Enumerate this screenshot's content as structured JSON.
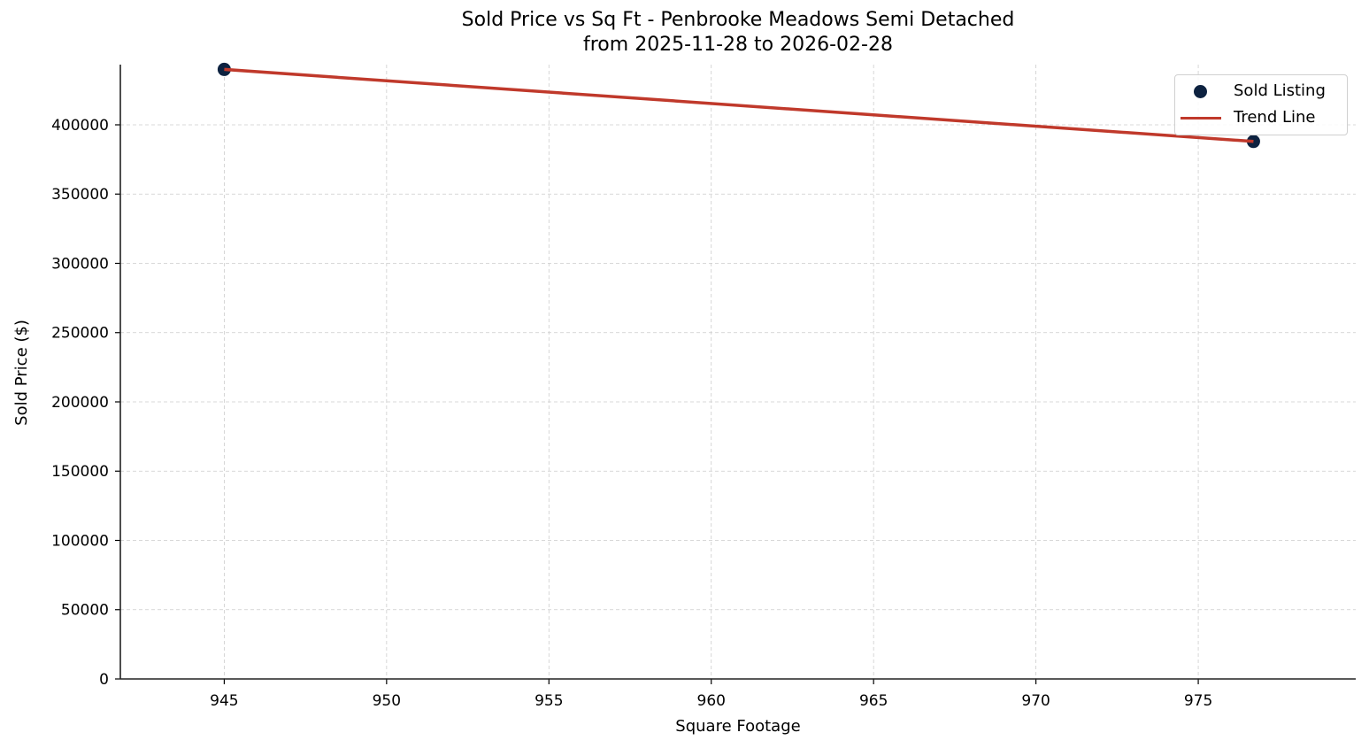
{
  "chart_data": {
    "type": "scatter",
    "title": "Sold Price vs Sq Ft - Penbrooke Meadows Semi Detached",
    "subtitle": "from 2025-11-28 to 2026-02-28",
    "xlabel": "Square Footage",
    "ylabel": "Sold Price ($)",
    "xlim": [
      941.8,
      979.85
    ],
    "ylim": [
      0,
      443450
    ],
    "x_ticks": [
      945,
      950,
      955,
      960,
      965,
      970,
      975
    ],
    "y_ticks": [
      0,
      50000,
      100000,
      150000,
      200000,
      250000,
      300000,
      350000,
      400000
    ],
    "grid": true,
    "legend_position": "upper right",
    "series": [
      {
        "name": "Sold Listing",
        "type": "scatter",
        "color": "#0d2240",
        "points": [
          {
            "x": 945,
            "y": 440000
          },
          {
            "x": 976.7,
            "y": 388000
          }
        ]
      },
      {
        "name": "Trend Line",
        "type": "line",
        "color": "#c0392b",
        "points": [
          {
            "x": 945,
            "y": 440000
          },
          {
            "x": 976.7,
            "y": 388000
          }
        ]
      }
    ]
  },
  "legend": {
    "items": [
      {
        "label": "Sold Listing",
        "color": "#0d2240"
      },
      {
        "label": "Trend Line",
        "color": "#c0392b"
      }
    ]
  }
}
